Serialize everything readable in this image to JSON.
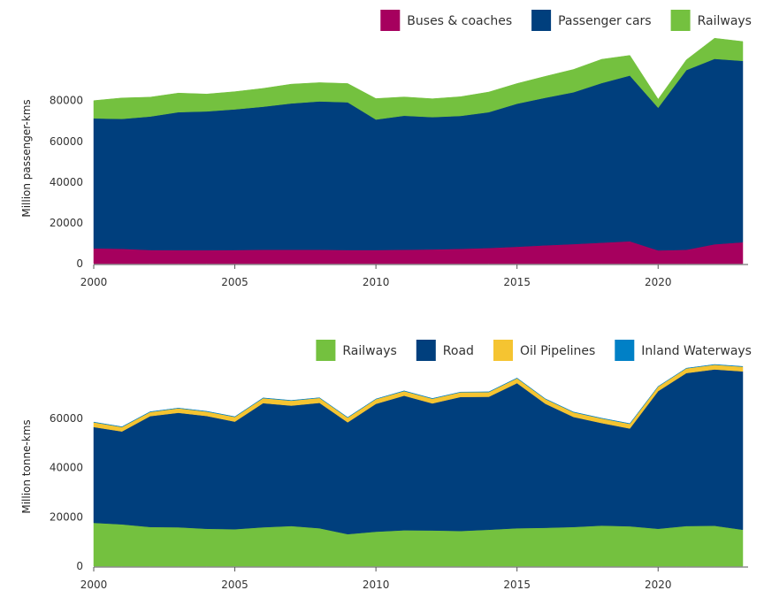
{
  "chart_data": [
    {
      "type": "area",
      "stacked": true,
      "ylabel": "Million passenger-kms",
      "x": [
        2000,
        2001,
        2002,
        2003,
        2004,
        2005,
        2006,
        2007,
        2008,
        2009,
        2010,
        2011,
        2012,
        2013,
        2014,
        2015,
        2016,
        2017,
        2018,
        2019,
        2020,
        2021,
        2022,
        2023
      ],
      "xticks": [
        "2000",
        "2005",
        "2010",
        "2015",
        "2020"
      ],
      "yticks": [
        "0",
        "20000",
        "40000",
        "60000",
        "80000"
      ],
      "ylim": [
        0,
        112000
      ],
      "grid": false,
      "legend_position": "top-right",
      "series": [
        {
          "name": "Buses & coaches",
          "color": "#a6005e",
          "values": [
            7500,
            7300,
            6700,
            6600,
            6600,
            6700,
            6800,
            6800,
            6800,
            6700,
            6700,
            6800,
            7000,
            7300,
            7700,
            8300,
            9000,
            9600,
            10300,
            11000,
            6500,
            6800,
            9500,
            10500
          ]
        },
        {
          "name": "Passenger cars",
          "color": "#003f7d",
          "values": [
            63800,
            63700,
            65500,
            67700,
            68100,
            69000,
            70200,
            71800,
            72800,
            72500,
            64000,
            65800,
            64900,
            65200,
            66600,
            70200,
            72400,
            74500,
            78300,
            81300,
            70000,
            88200,
            91000,
            89000
          ]
        },
        {
          "name": "Railways",
          "color": "#74c13f",
          "values": [
            8700,
            10300,
            9500,
            9400,
            8500,
            8700,
            9000,
            9500,
            9200,
            9200,
            10300,
            9200,
            9000,
            9400,
            9900,
            9900,
            10500,
            11200,
            11700,
            9900,
            4200,
            5000,
            10100,
            9500
          ]
        }
      ]
    },
    {
      "type": "area",
      "stacked": true,
      "ylabel": "Million tonne-kms",
      "x": [
        2000,
        2001,
        2002,
        2003,
        2004,
        2005,
        2006,
        2007,
        2008,
        2009,
        2010,
        2011,
        2012,
        2013,
        2014,
        2015,
        2016,
        2017,
        2018,
        2019,
        2020,
        2021,
        2022,
        2023
      ],
      "xticks": [
        "2000",
        "2005",
        "2010",
        "2015",
        "2020"
      ],
      "yticks": [
        "0",
        "20000",
        "40000",
        "60000"
      ],
      "ylim": [
        0,
        88000
      ],
      "grid": false,
      "legend_position": "top-right",
      "series": [
        {
          "name": "Railways",
          "color": "#74c13f",
          "values": [
            17600,
            17000,
            15900,
            15800,
            15200,
            15000,
            15800,
            16300,
            15400,
            13000,
            14000,
            14600,
            14500,
            14300,
            14800,
            15400,
            15600,
            15900,
            16500,
            16200,
            15200,
            16300,
            16400,
            14800
          ]
        },
        {
          "name": "Road",
          "color": "#003f7d",
          "values": [
            38900,
            37700,
            45000,
            46500,
            45800,
            43700,
            50400,
            48900,
            50900,
            45400,
            51900,
            54600,
            51600,
            54400,
            54000,
            58900,
            50400,
            44700,
            41600,
            39700,
            55900,
            62100,
            63500,
            64300
          ]
        },
        {
          "name": "Oil Pipelines",
          "color": "#f5c431",
          "values": [
            1900,
            1800,
            1700,
            1800,
            1800,
            1900,
            2000,
            2000,
            2000,
            1900,
            1900,
            1900,
            1900,
            1900,
            1900,
            2000,
            1900,
            1900,
            1900,
            1900,
            1800,
            1900,
            1900,
            1900
          ]
        },
        {
          "name": "Inland Waterways",
          "color": "#0080c6",
          "values": [
            100,
            100,
            100,
            100,
            100,
            100,
            100,
            100,
            100,
            100,
            100,
            100,
            100,
            100,
            100,
            100,
            100,
            100,
            100,
            100,
            100,
            100,
            100,
            100
          ]
        }
      ]
    }
  ]
}
